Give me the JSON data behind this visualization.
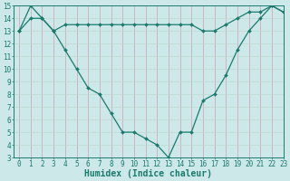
{
  "xlabel": "Humidex (Indice chaleur)",
  "x": [
    0,
    1,
    2,
    3,
    4,
    5,
    6,
    7,
    8,
    9,
    10,
    11,
    12,
    13,
    14,
    15,
    16,
    17,
    18,
    19,
    20,
    21,
    22,
    23
  ],
  "line1": [
    13.0,
    15.0,
    14.0,
    13.0,
    11.5,
    10.0,
    8.5,
    8.0,
    6.5,
    5.0,
    5.0,
    4.5,
    4.0,
    3.0,
    5.0,
    5.0,
    7.5,
    8.0,
    9.5,
    11.5,
    13.0,
    14.0,
    15.0,
    14.5
  ],
  "line2": [
    13.0,
    14.0,
    14.0,
    13.0,
    13.5,
    13.5,
    13.5,
    13.5,
    13.5,
    13.5,
    13.5,
    13.5,
    13.5,
    13.5,
    13.5,
    13.5,
    13.0,
    13.0,
    13.5,
    14.0,
    14.5,
    14.5,
    15.0,
    14.5
  ],
  "line_color": "#1a7a6e",
  "bg_color": "#cce8e8",
  "grid_color_v": "#d0a0b0",
  "grid_color_h": "#c0d8d0",
  "ylim": [
    3,
    15
  ],
  "xlim": [
    -0.5,
    23
  ],
  "yticks": [
    3,
    4,
    5,
    6,
    7,
    8,
    9,
    10,
    11,
    12,
    13,
    14,
    15
  ],
  "xticks": [
    0,
    1,
    2,
    3,
    4,
    5,
    6,
    7,
    8,
    9,
    10,
    11,
    12,
    13,
    14,
    15,
    16,
    17,
    18,
    19,
    20,
    21,
    22,
    23
  ],
  "marker": "D",
  "markersize": 2.0,
  "linewidth": 0.9,
  "xlabel_fontsize": 7,
  "tick_fontsize": 5.5
}
